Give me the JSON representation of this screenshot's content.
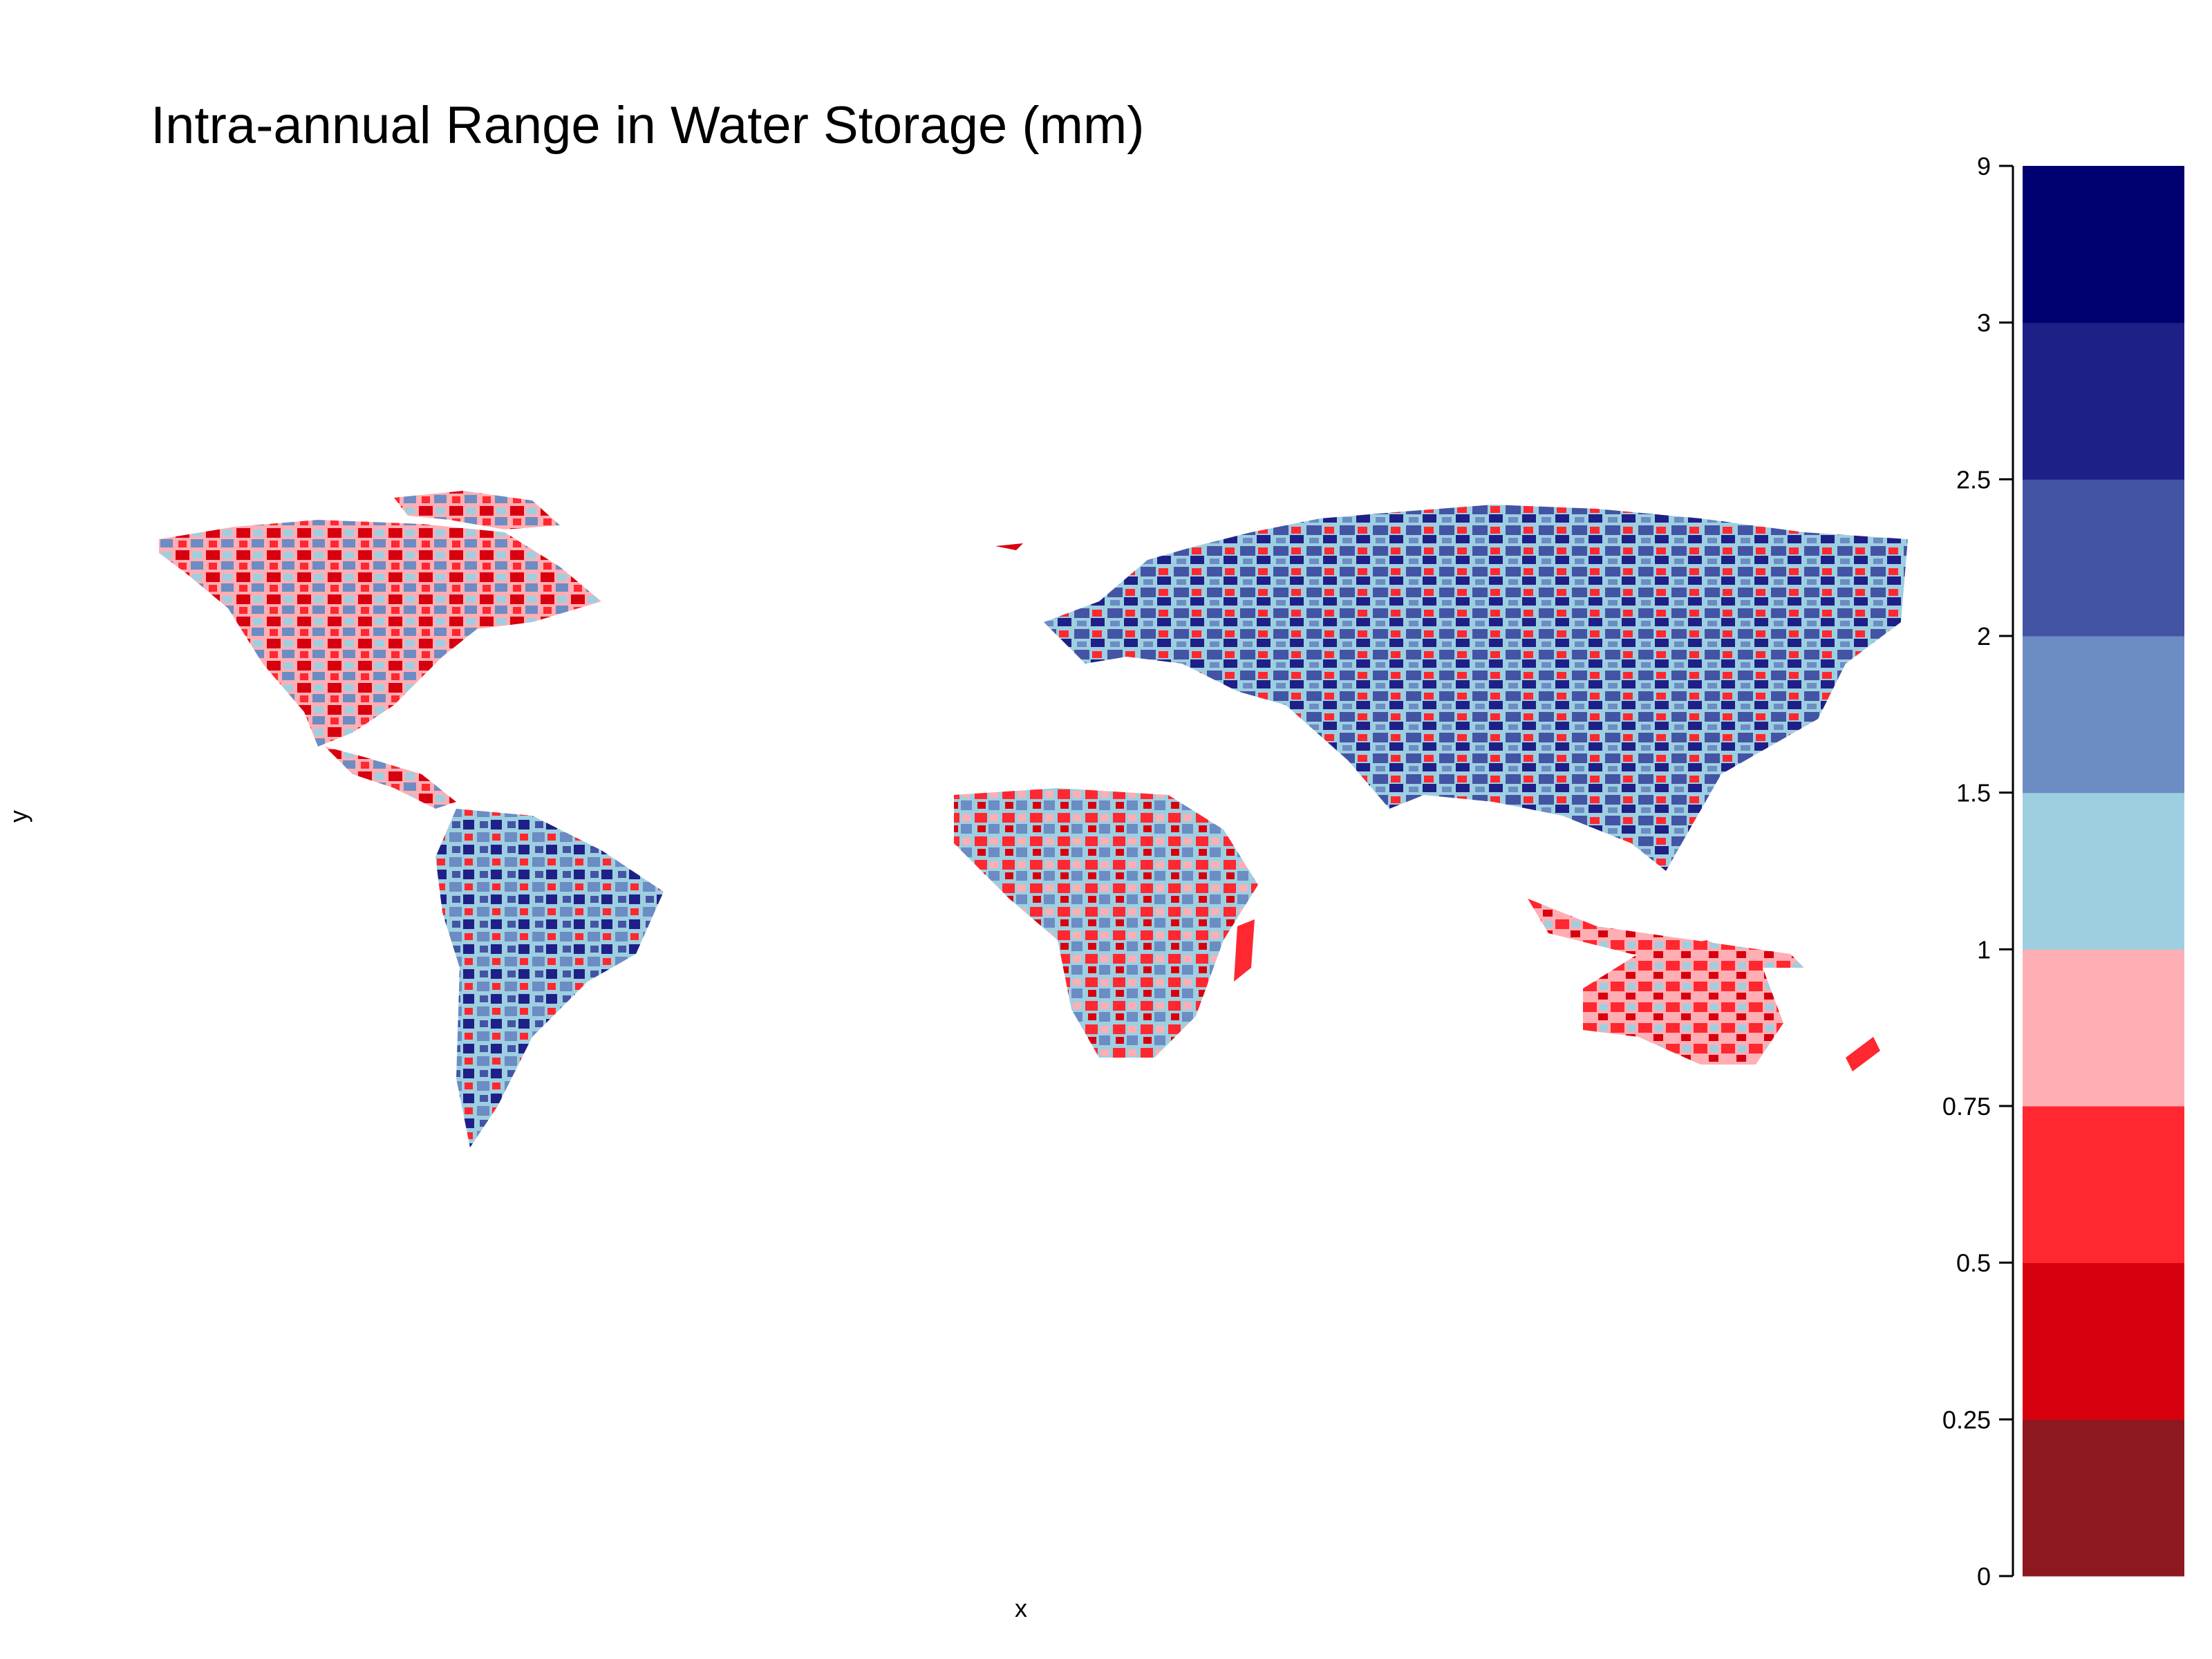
{
  "title": "Intra-annual Range in Water Storage (mm)",
  "xlabel": "x",
  "ylabel": "y",
  "chart_data": {
    "type": "heatmap",
    "title": "Intra-annual Range in Water Storage (mm)",
    "xlabel": "x",
    "ylabel": "y",
    "legend_placement": "right",
    "grid": false,
    "legend": {
      "breaks": [
        "0",
        "0.25",
        "0.5",
        "0.75",
        "1",
        "1.5",
        "2",
        "2.5",
        "3",
        "9"
      ],
      "colors": [
        "#8e1820",
        "#d7000f",
        "#ff2730",
        "#ffaeb4",
        "#9ecfe0",
        "#6c8cc4",
        "#4454a4",
        "#1e2088",
        "#000070"
      ]
    }
  }
}
